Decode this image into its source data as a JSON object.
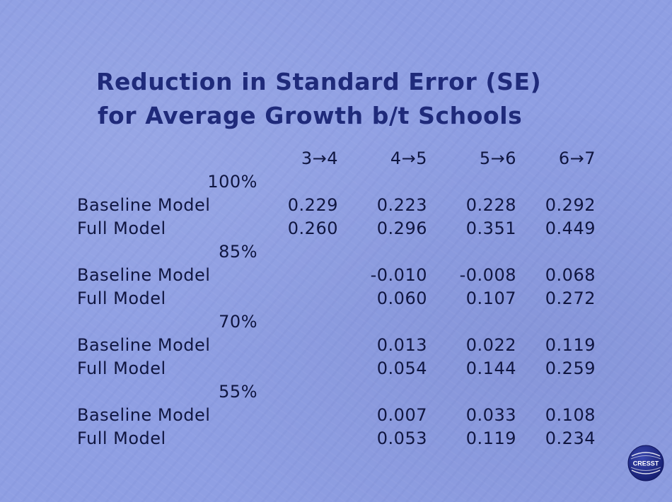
{
  "title": {
    "line1": "Reduction in Standard Error (SE)",
    "line2": "for Average Growth b/t Schools"
  },
  "table": {
    "columns": [
      "3→4",
      "4→5",
      "5→6",
      "6→7"
    ],
    "groups": [
      {
        "label": "100%",
        "rows": [
          {
            "label": "Baseline Model",
            "values": [
              "0.229",
              "0.223",
              "0.228",
              "0.292"
            ]
          },
          {
            "label": "Full Model",
            "values": [
              "0.260",
              "0.296",
              "0.351",
              "0.449"
            ]
          }
        ]
      },
      {
        "label": "85%",
        "rows": [
          {
            "label": "Baseline Model",
            "values": [
              "",
              "-0.010",
              "-0.008",
              "0.068"
            ]
          },
          {
            "label": "Full Model",
            "values": [
              "",
              "0.060",
              "0.107",
              "0.272"
            ]
          }
        ]
      },
      {
        "label": "70%",
        "rows": [
          {
            "label": "Baseline Model",
            "values": [
              "",
              "0.013",
              "0.022",
              "0.119"
            ]
          },
          {
            "label": "Full Model",
            "values": [
              "",
              "0.054",
              "0.144",
              "0.259"
            ]
          }
        ]
      },
      {
        "label": "55%",
        "rows": [
          {
            "label": "Baseline Model",
            "values": [
              "",
              "0.007",
              "0.033",
              "0.108"
            ]
          },
          {
            "label": "Full Model",
            "values": [
              "",
              "0.053",
              "0.119",
              "0.234"
            ]
          }
        ]
      }
    ]
  },
  "logo": {
    "text": "CRESST",
    "color": "#1a237e"
  },
  "colors": {
    "background": "#8f9fe3",
    "title": "#1f2a7a",
    "table_text": "#101640"
  }
}
